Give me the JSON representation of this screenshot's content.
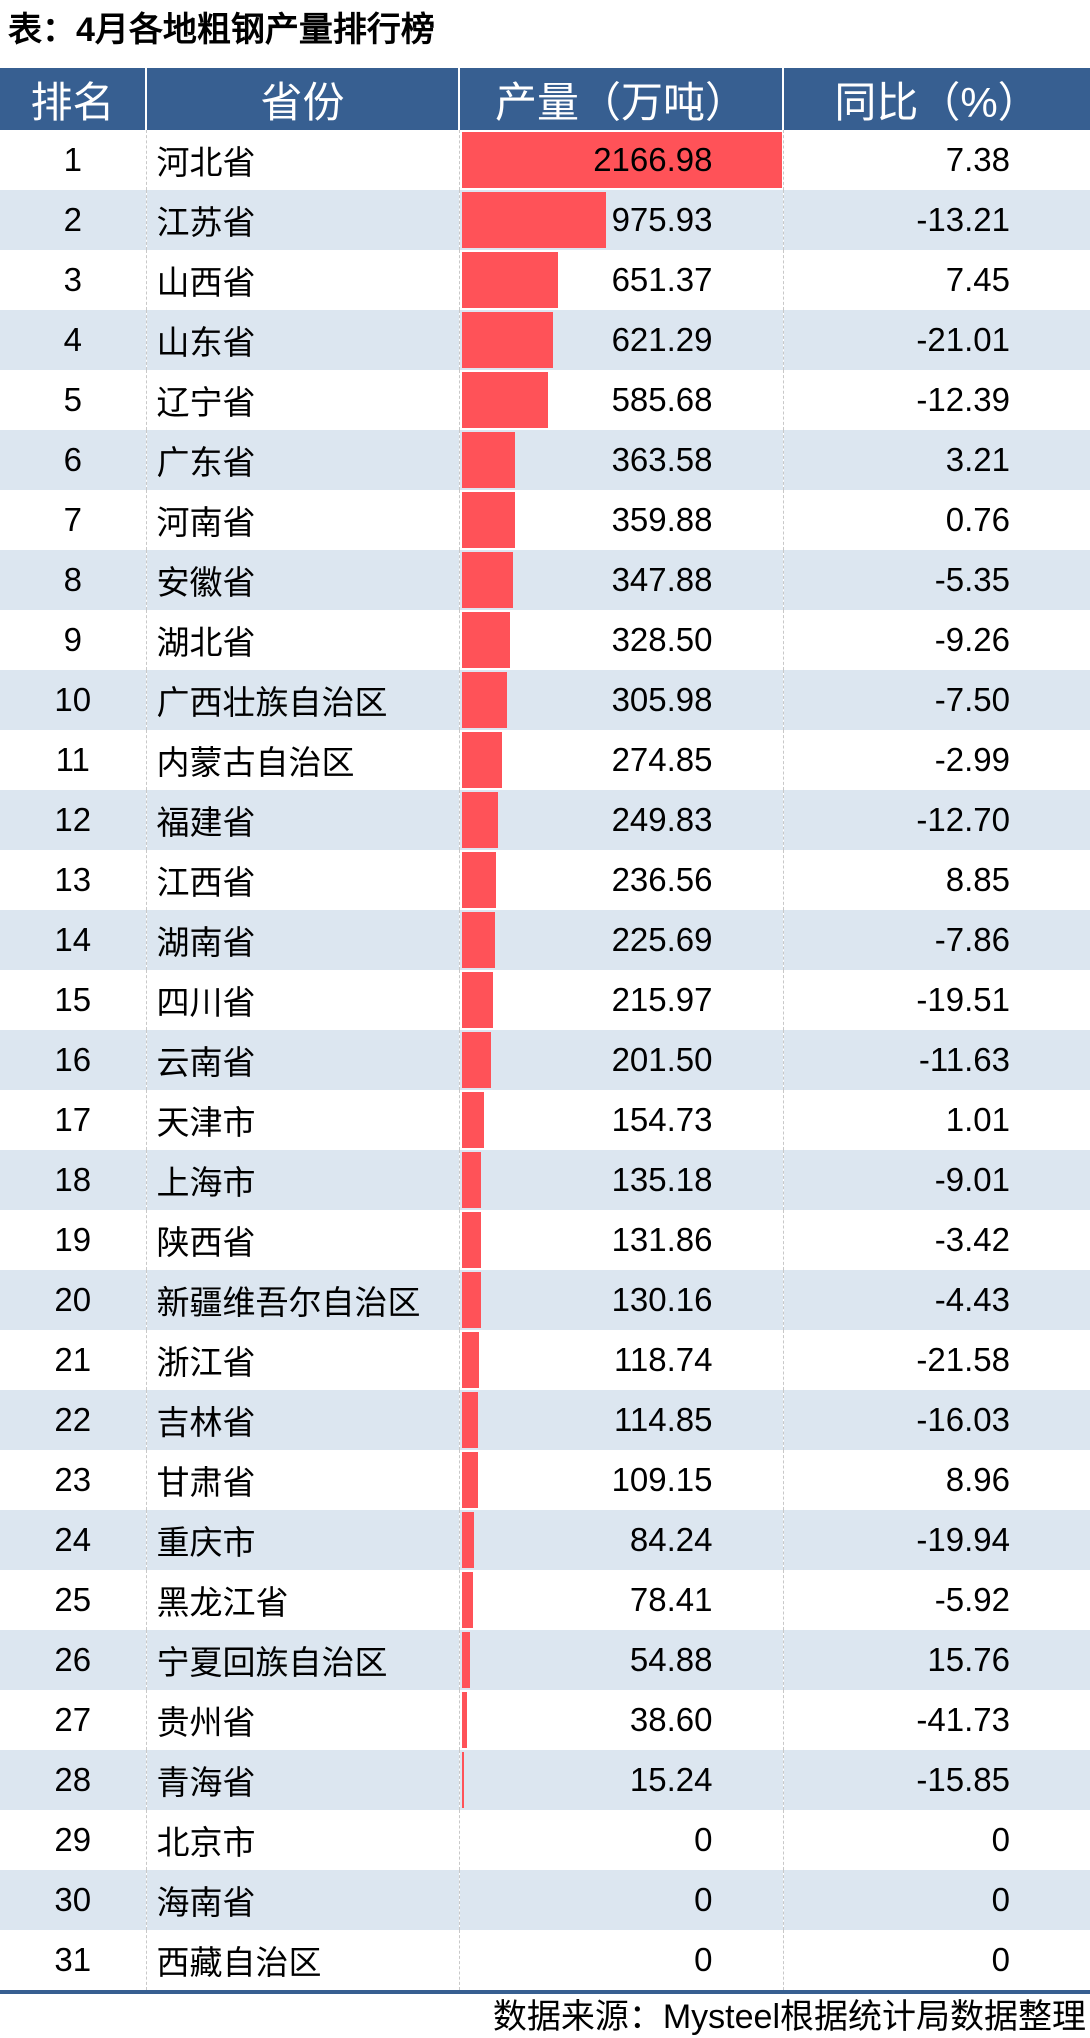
{
  "title": "表：4月各地粗钢产量排行榜",
  "columns": [
    "排名",
    "省份",
    "产量（万吨）",
    "同比（%）"
  ],
  "bar_color": "#ff5258",
  "header_color": "#375f91",
  "rows": [
    {
      "rank": "1",
      "province": "河北省",
      "output": "2166.98",
      "yoy": "7.38"
    },
    {
      "rank": "2",
      "province": "江苏省",
      "output": "975.93",
      "yoy": "-13.21"
    },
    {
      "rank": "3",
      "province": "山西省",
      "output": "651.37",
      "yoy": "7.45"
    },
    {
      "rank": "4",
      "province": "山东省",
      "output": "621.29",
      "yoy": "-21.01"
    },
    {
      "rank": "5",
      "province": "辽宁省",
      "output": "585.68",
      "yoy": "-12.39"
    },
    {
      "rank": "6",
      "province": "广东省",
      "output": "363.58",
      "yoy": "3.21"
    },
    {
      "rank": "7",
      "province": "河南省",
      "output": "359.88",
      "yoy": "0.76"
    },
    {
      "rank": "8",
      "province": "安徽省",
      "output": "347.88",
      "yoy": "-5.35"
    },
    {
      "rank": "9",
      "province": "湖北省",
      "output": "328.50",
      "yoy": "-9.26"
    },
    {
      "rank": "10",
      "province": "广西壮族自治区",
      "output": "305.98",
      "yoy": "-7.50"
    },
    {
      "rank": "11",
      "province": "内蒙古自治区",
      "output": "274.85",
      "yoy": "-2.99"
    },
    {
      "rank": "12",
      "province": "福建省",
      "output": "249.83",
      "yoy": "-12.70"
    },
    {
      "rank": "13",
      "province": "江西省",
      "output": "236.56",
      "yoy": "8.85"
    },
    {
      "rank": "14",
      "province": "湖南省",
      "output": "225.69",
      "yoy": "-7.86"
    },
    {
      "rank": "15",
      "province": "四川省",
      "output": "215.97",
      "yoy": "-19.51"
    },
    {
      "rank": "16",
      "province": "云南省",
      "output": "201.50",
      "yoy": "-11.63"
    },
    {
      "rank": "17",
      "province": "天津市",
      "output": "154.73",
      "yoy": "1.01"
    },
    {
      "rank": "18",
      "province": "上海市",
      "output": "135.18",
      "yoy": "-9.01"
    },
    {
      "rank": "19",
      "province": "陕西省",
      "output": "131.86",
      "yoy": "-3.42"
    },
    {
      "rank": "20",
      "province": "新疆维吾尔自治区",
      "output": "130.16",
      "yoy": "-4.43"
    },
    {
      "rank": "21",
      "province": "浙江省",
      "output": "118.74",
      "yoy": "-21.58"
    },
    {
      "rank": "22",
      "province": "吉林省",
      "output": "114.85",
      "yoy": "-16.03"
    },
    {
      "rank": "23",
      "province": "甘肃省",
      "output": "109.15",
      "yoy": "8.96"
    },
    {
      "rank": "24",
      "province": "重庆市",
      "output": "84.24",
      "yoy": "-19.94"
    },
    {
      "rank": "25",
      "province": "黑龙江省",
      "output": "78.41",
      "yoy": "-5.92"
    },
    {
      "rank": "26",
      "province": "宁夏回族自治区",
      "output": "54.88",
      "yoy": "15.76"
    },
    {
      "rank": "27",
      "province": "贵州省",
      "output": "38.60",
      "yoy": "-41.73"
    },
    {
      "rank": "28",
      "province": "青海省",
      "output": "15.24",
      "yoy": "-15.85"
    },
    {
      "rank": "29",
      "province": "北京市",
      "output": "0",
      "yoy": "0"
    },
    {
      "rank": "30",
      "province": "海南省",
      "output": "0",
      "yoy": "0"
    },
    {
      "rank": "31",
      "province": "西藏自治区",
      "output": "0",
      "yoy": "0"
    }
  ],
  "source": "数据来源：Mysteel根据统计局数据整理"
}
